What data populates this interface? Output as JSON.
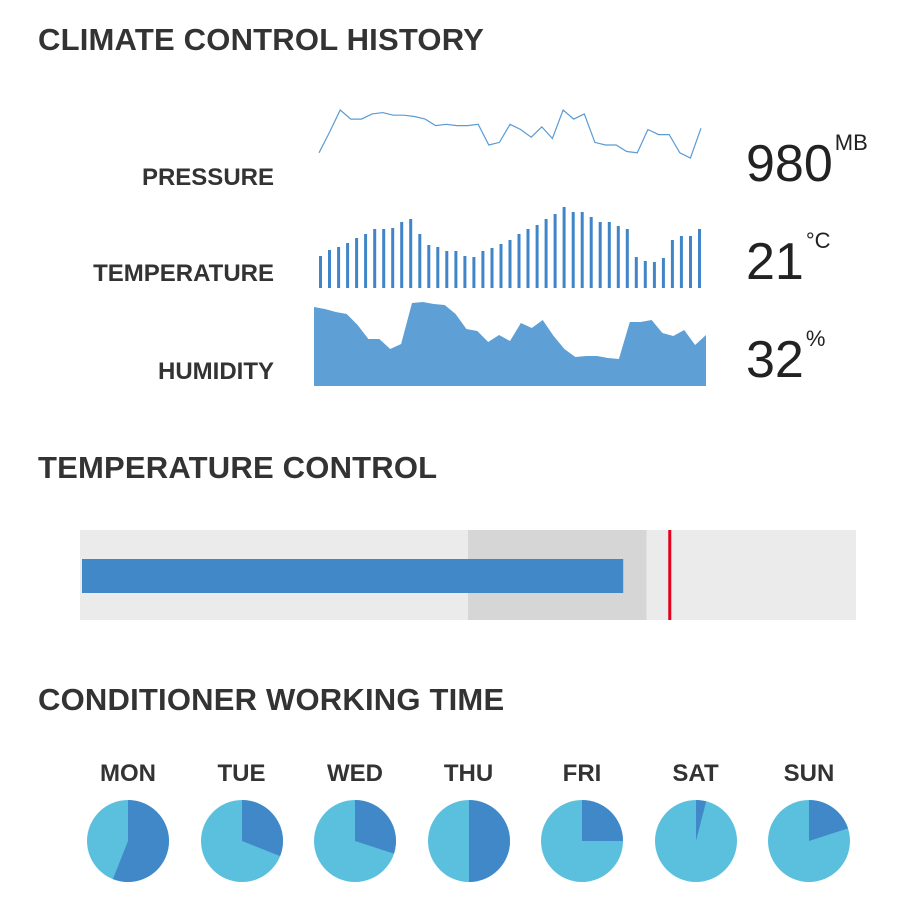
{
  "sections": {
    "history_title": "CLIMATE CONTROL HISTORY",
    "control_title": "TEMPERATURE CONTROL",
    "working_title": "CONDITIONER WORKING TIME"
  },
  "metrics": {
    "pressure": {
      "label": "PRESSURE",
      "value": "980",
      "unit": "MB"
    },
    "temperature": {
      "label": "TEMPERATURE",
      "value": "21",
      "unit": "°C"
    },
    "humidity": {
      "label": "HUMIDITY",
      "value": "32",
      "unit": "%"
    }
  },
  "colors": {
    "line": "#5b9bd5",
    "bar": "#3f85c8",
    "area": "#5e9fd6",
    "bullet_bg": "#ebebeb",
    "bullet_range": "#d6d6d6",
    "bullet_bar": "#4188c9",
    "bullet_target": "#e3001b",
    "pie_light": "#5bc0de",
    "pie_dark": "#4188c9"
  },
  "chart_data": [
    {
      "type": "line",
      "name": "pressure-sparkline",
      "values": [
        4,
        20,
        37,
        30,
        30,
        34,
        35,
        33,
        33,
        32,
        30,
        25,
        26,
        25,
        25,
        26,
        10,
        12,
        26,
        22,
        16,
        24,
        15,
        37,
        30,
        34,
        12,
        10,
        10,
        5,
        4,
        22,
        18,
        18,
        4,
        0,
        23
      ]
    },
    {
      "type": "bar",
      "name": "temperature-sparkline",
      "values": [
        32,
        38,
        41,
        45,
        50,
        54,
        59,
        59,
        60,
        66,
        69,
        54,
        43,
        41,
        37,
        37,
        32,
        31,
        37,
        40,
        44,
        48,
        54,
        59,
        63,
        69,
        74,
        81,
        76,
        76,
        71,
        66,
        66,
        62,
        59,
        31,
        27,
        26,
        30,
        48,
        52,
        52,
        59
      ]
    },
    {
      "type": "area",
      "name": "humidity-sparkline",
      "values": [
        79,
        77,
        74,
        72,
        61,
        47,
        47,
        37,
        42,
        83,
        84,
        82,
        81,
        72,
        57,
        55,
        44,
        51,
        45,
        63,
        58,
        66,
        50,
        37,
        29,
        30,
        30,
        28,
        27,
        64,
        64,
        66,
        53,
        50,
        56,
        41,
        51
      ]
    },
    {
      "type": "bar",
      "name": "temperature-control-bullet",
      "value": 70,
      "qualitative_range": [
        50,
        73
      ],
      "target": 76,
      "max": 100
    },
    {
      "type": "pie",
      "name": "conditioner-working-time",
      "days": [
        {
          "label": "MON",
          "value": 0.56
        },
        {
          "label": "TUE",
          "value": 0.31
        },
        {
          "label": "WED",
          "value": 0.3
        },
        {
          "label": "THU",
          "value": 0.5
        },
        {
          "label": "FRI",
          "value": 0.25
        },
        {
          "label": "SAT",
          "value": 0.04
        },
        {
          "label": "SUN",
          "value": 0.2
        }
      ]
    }
  ]
}
